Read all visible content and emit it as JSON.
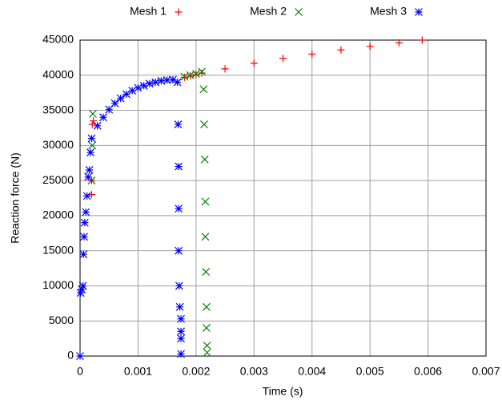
{
  "chart_data": {
    "type": "scatter",
    "xlabel": "Time (s)",
    "ylabel": "Reaction force (N)",
    "xlim": [
      0,
      0.007
    ],
    "xticks": [
      0,
      0.001,
      0.002,
      0.003,
      0.004,
      0.005,
      0.006,
      0.007
    ],
    "ylim": [
      0,
      45000
    ],
    "yticks": [
      0,
      5000,
      10000,
      15000,
      20000,
      25000,
      30000,
      35000,
      40000,
      45000
    ],
    "grid": true,
    "legend": "top",
    "series": [
      {
        "name": "Mesh 1",
        "color": "#ff0000",
        "marker": "plus",
        "x": [
          0.0002,
          0.0002,
          0.00021,
          0.00023,
          0.0018,
          0.0019,
          0.002,
          0.0021,
          0.0025,
          0.003,
          0.0035,
          0.004,
          0.0045,
          0.005,
          0.0055,
          0.0059
        ],
        "values": [
          23000,
          25000,
          33000,
          33500,
          39700,
          39900,
          40100,
          40300,
          40900,
          41700,
          42400,
          43000,
          43600,
          44100,
          44600,
          45000
        ]
      },
      {
        "name": "Mesh 2",
        "color": "#008000",
        "marker": "cross",
        "x": [
          0.0002,
          0.00021,
          0.00022,
          0.0018,
          0.0019,
          0.002,
          0.0021,
          0.00213,
          0.00214,
          0.00215,
          0.00216,
          0.00216,
          0.00217,
          0.00218,
          0.00218,
          0.00219,
          0.00219
        ],
        "values": [
          25000,
          30000,
          34500,
          39800,
          40000,
          40200,
          40500,
          38000,
          33000,
          28000,
          22000,
          17000,
          12000,
          7000,
          4000,
          1500,
          500
        ]
      },
      {
        "name": "Mesh 3",
        "color": "#0000ff",
        "marker": "star",
        "x": [
          0,
          1e-05,
          3e-05,
          5e-05,
          6e-05,
          7e-05,
          8e-05,
          0.0001,
          0.00012,
          0.00014,
          0.00016,
          0.00018,
          0.0002,
          0.0003,
          0.0004,
          0.0005,
          0.0006,
          0.0007,
          0.0008,
          0.0009,
          0.001,
          0.0011,
          0.0012,
          0.0013,
          0.0014,
          0.0015,
          0.0016,
          0.00168,
          0.00169,
          0.0017,
          0.0017,
          0.0017,
          0.00171,
          0.00172,
          0.00174,
          0.00174,
          0.00174,
          0.00174
        ],
        "values": [
          0,
          9000,
          9500,
          10000,
          14500,
          17000,
          19000,
          20500,
          22800,
          25500,
          26500,
          29000,
          31000,
          32800,
          34000,
          35100,
          36000,
          36700,
          37300,
          37800,
          38200,
          38500,
          38800,
          39000,
          39200,
          39300,
          39350,
          39000,
          33000,
          27000,
          21000,
          15000,
          10000,
          7000,
          5300,
          3500,
          2500,
          300
        ]
      }
    ]
  }
}
